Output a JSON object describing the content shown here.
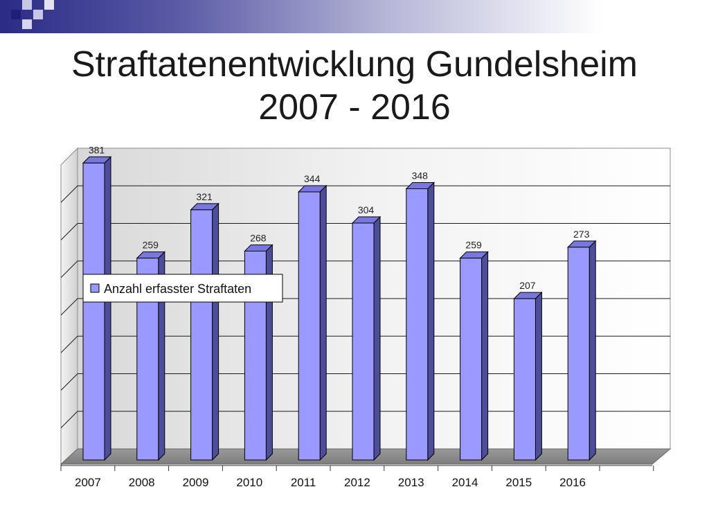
{
  "slide": {
    "title_line1": "Straftatenentwicklung Gundelsheim",
    "title_line2": "2007 - 2016"
  },
  "colors": {
    "bar_front": "#9999ff",
    "bar_side": "#4d4d99",
    "bar_top": "#7777dd",
    "title_band": "#2b2b86"
  },
  "chart_data": {
    "type": "bar",
    "title": "",
    "xlabel": "",
    "ylabel": "",
    "categories": [
      "2007",
      "2008",
      "2009",
      "2010",
      "2011",
      "2012",
      "2013",
      "2014",
      "2015",
      "2016"
    ],
    "series": [
      {
        "name": "Anzahl erfasster Straftaten",
        "values": [
          381,
          259,
          321,
          268,
          344,
          304,
          348,
          259,
          207,
          273
        ]
      }
    ],
    "ylim": [
      0,
      400
    ],
    "grid": true,
    "legend": "left, overlapping plot",
    "data_labels": true,
    "style": "3d"
  }
}
